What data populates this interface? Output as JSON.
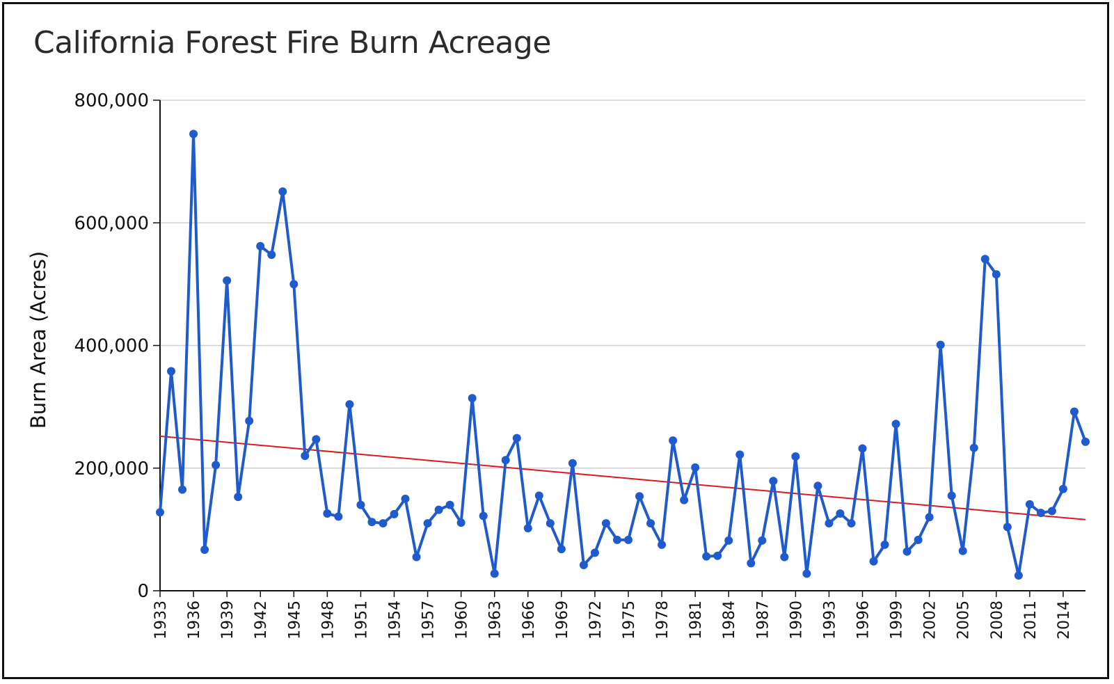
{
  "chart_data": {
    "type": "line",
    "title": "California Forest Fire Burn Acreage",
    "xlabel": "",
    "ylabel": "Burn Area (Acres)",
    "ylim": [
      0,
      800000
    ],
    "yticks": [
      0,
      200000,
      400000,
      600000,
      800000
    ],
    "ytick_labels": [
      "0",
      "200,000",
      "400,000",
      "600,000",
      "800,000"
    ],
    "xlim": [
      1933,
      2016
    ],
    "xticks": [
      1933,
      1936,
      1939,
      1942,
      1945,
      1948,
      1951,
      1954,
      1957,
      1960,
      1963,
      1966,
      1969,
      1972,
      1975,
      1978,
      1981,
      1984,
      1987,
      1990,
      1993,
      1996,
      1999,
      2002,
      2005,
      2008,
      2011,
      2014
    ],
    "xtick_labels": [
      "1933",
      "1936",
      "1939",
      "1942",
      "1945",
      "1948",
      "1951",
      "1954",
      "1957",
      "1960",
      "1963",
      "1966",
      "1969",
      "1972",
      "1975",
      "1978",
      "1981",
      "1984",
      "1987",
      "1990",
      "1993",
      "1996",
      "1999",
      "2002",
      "2005",
      "2008",
      "2011",
      "2014"
    ],
    "grid": "horizontal",
    "legend": "none",
    "series": [
      {
        "color": "#1f5bcc",
        "x": [
          1933,
          1934,
          1935,
          1936,
          1937,
          1938,
          1939,
          1940,
          1941,
          1942,
          1943,
          1944,
          1945,
          1946,
          1947,
          1948,
          1949,
          1950,
          1951,
          1952,
          1953,
          1954,
          1955,
          1956,
          1957,
          1958,
          1959,
          1960,
          1961,
          1962,
          1963,
          1964,
          1965,
          1966,
          1967,
          1968,
          1969,
          1970,
          1971,
          1972,
          1973,
          1974,
          1975,
          1976,
          1977,
          1978,
          1979,
          1980,
          1981,
          1982,
          1983,
          1984,
          1985,
          1986,
          1987,
          1988,
          1989,
          1990,
          1991,
          1992,
          1993,
          1994,
          1995,
          1996,
          1997,
          1998,
          1999,
          2000,
          2001,
          2002,
          2003,
          2004,
          2005,
          2006,
          2007,
          2008,
          2009,
          2010,
          2011,
          2012,
          2013,
          2014,
          2015,
          2016
        ],
        "y": [
          128000,
          358000,
          165000,
          745000,
          67000,
          205000,
          506000,
          153000,
          277000,
          562000,
          548000,
          651000,
          500000,
          220000,
          247000,
          126000,
          121000,
          304000,
          140000,
          112000,
          110000,
          125000,
          150000,
          55000,
          110000,
          132000,
          140000,
          111000,
          314000,
          122000,
          28000,
          213000,
          249000,
          102000,
          155000,
          110000,
          68000,
          208000,
          42000,
          62000,
          110000,
          83000,
          83000,
          154000,
          110000,
          75000,
          245000,
          148000,
          201000,
          56000,
          57000,
          82000,
          222000,
          45000,
          82000,
          179000,
          55000,
          219000,
          28000,
          171000,
          110000,
          126000,
          110000,
          232000,
          48000,
          75000,
          272000,
          64000,
          83000,
          120000,
          401000,
          155000,
          65000,
          233000,
          541000,
          516000,
          104000,
          25000,
          141000,
          127000,
          130000,
          166000,
          292000,
          243000
        ]
      },
      {
        "name": "",
        "kind": "trend",
        "color": "#e0181b",
        "x": [
          1933,
          2016
        ],
        "y": [
          252000,
          116000
        ]
      }
    ]
  }
}
